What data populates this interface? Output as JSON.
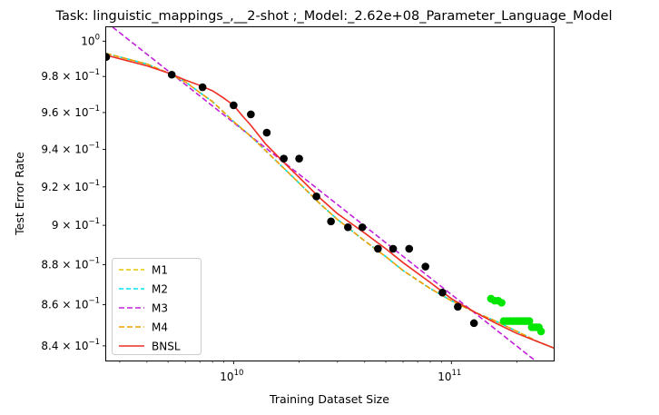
{
  "chart_data": {
    "type": "scatter",
    "title": "Task: linguistic_mappings_,__2-shot ;_Model:_2.62e+08_Parameter_Language_Model",
    "xlabel": "Training Dataset Size",
    "ylabel": "Test Error Rate",
    "xscale": "log",
    "yscale": "log",
    "xlim": [
      2600000000.0,
      295000000000.0
    ],
    "ylim": [
      0.833,
      1.008
    ],
    "grid": false,
    "legend_position": "lower-left",
    "xticks": [
      {
        "value": 10000000000.0,
        "base": "10",
        "exp": "10"
      },
      {
        "value": 100000000000.0,
        "base": "10",
        "exp": "11"
      }
    ],
    "yticks": [
      {
        "value": 1.0,
        "base": "10",
        "exp": "0"
      },
      {
        "value": 0.98,
        "mant": "9.8",
        "base": "10",
        "exp": "−1"
      },
      {
        "value": 0.96,
        "mant": "9.6",
        "base": "10",
        "exp": "−1"
      },
      {
        "value": 0.94,
        "mant": "9.4",
        "base": "10",
        "exp": "−1"
      },
      {
        "value": 0.92,
        "mant": "9.2",
        "base": "10",
        "exp": "−1"
      },
      {
        "value": 0.9,
        "mant": "9",
        "base": "10",
        "exp": "−1"
      },
      {
        "value": 0.88,
        "mant": "8.8",
        "base": "10",
        "exp": "−1"
      },
      {
        "value": 0.86,
        "mant": "8.6",
        "base": "10",
        "exp": "−1"
      },
      {
        "value": 0.84,
        "mant": "8.4",
        "base": "10",
        "exp": "−1"
      }
    ],
    "train_points": {
      "color": "#000000",
      "x": [
        2600000000.0,
        5200000000.0,
        7200000000.0,
        10000000000.0,
        12000000000.0,
        14200000000.0,
        17000000000.0,
        20000000000.0,
        24000000000.0,
        28000000000.0,
        33500000000.0,
        39000000000.0,
        46000000000.0,
        54000000000.0,
        64000000000.0,
        76000000000.0,
        91000000000.0,
        107000000000.0,
        127000000000.0
      ],
      "y": [
        0.991,
        0.981,
        0.974,
        0.964,
        0.959,
        0.949,
        0.935,
        0.935,
        0.915,
        0.902,
        0.899,
        0.899,
        0.888,
        0.888,
        0.888,
        0.879,
        0.866,
        0.859,
        0.851
      ]
    },
    "test_points": {
      "color": "#00e600",
      "x": [
        152000000000.0,
        158000000000.0,
        164000000000.0,
        170000000000.0,
        174000000000.0,
        180000000000.0,
        186000000000.0,
        192000000000.0,
        198000000000.0,
        204000000000.0,
        210000000000.0,
        216000000000.0,
        222000000000.0,
        228000000000.0,
        234000000000.0,
        240000000000.0,
        246000000000.0,
        252000000000.0,
        258000000000.0
      ],
      "y": [
        0.863,
        0.862,
        0.862,
        0.861,
        0.852,
        0.852,
        0.852,
        0.852,
        0.852,
        0.852,
        0.852,
        0.852,
        0.852,
        0.852,
        0.849,
        0.849,
        0.849,
        0.849,
        0.847
      ]
    },
    "series": [
      {
        "name": "M1",
        "color": "#e6c800",
        "dash": "5,3",
        "x": [
          2600000000.0,
          3000000000.0,
          4000000000.0,
          5000000000.0,
          6000000000.0,
          7000000000.0,
          8000000000.0,
          10000000000.0,
          12000000000.0,
          15000000000.0,
          20000000000.0,
          25000000000.0,
          30000000000.0,
          40000000000.0,
          50000000000.0,
          60000000000.0,
          80000000000.0,
          100000000000.0,
          130000000000.0,
          160000000000.0,
          200000000000.0,
          250000000000.0,
          295000000000.0
        ],
        "y": [
          0.993,
          0.991,
          0.987,
          0.982,
          0.977,
          0.971,
          0.966,
          0.955,
          0.947,
          0.936,
          0.922,
          0.911,
          0.903,
          0.892,
          0.884,
          0.877,
          0.868,
          0.862,
          0.856,
          0.852,
          0.847,
          0.842,
          0.839
        ]
      },
      {
        "name": "M2",
        "color": "#00e5ee",
        "dash": "5,3",
        "x": [
          2600000000.0,
          3000000000.0,
          4000000000.0,
          5000000000.0,
          6000000000.0,
          7000000000.0,
          8000000000.0,
          10000000000.0,
          12000000000.0,
          15000000000.0,
          20000000000.0,
          25000000000.0,
          30000000000.0,
          40000000000.0,
          50000000000.0,
          60000000000.0,
          80000000000.0,
          100000000000.0,
          130000000000.0,
          160000000000.0,
          200000000000.0,
          250000000000.0,
          295000000000.0
        ],
        "y": [
          0.993,
          0.991,
          0.987,
          0.982,
          0.977,
          0.971,
          0.966,
          0.955,
          0.947,
          0.936,
          0.922,
          0.911,
          0.903,
          0.892,
          0.884,
          0.877,
          0.868,
          0.862,
          0.856,
          0.852,
          0.847,
          0.842,
          0.839
        ]
      },
      {
        "name": "M3",
        "color": "#c020d8",
        "dash": "6,3",
        "x": [
          2600000000.0,
          295000000000.0
        ],
        "y": [
          1.011,
          0.826
        ]
      },
      {
        "name": "M4",
        "color": "#f0a000",
        "dash": "6,3",
        "x": [
          2600000000.0,
          3000000000.0,
          4000000000.0,
          5000000000.0,
          6000000000.0,
          7000000000.0,
          8000000000.0,
          10000000000.0,
          12000000000.0,
          15000000000.0,
          20000000000.0,
          25000000000.0,
          30000000000.0,
          40000000000.0,
          50000000000.0,
          60000000000.0,
          80000000000.0,
          100000000000.0,
          130000000000.0,
          160000000000.0,
          200000000000.0,
          250000000000.0,
          295000000000.0
        ],
        "y": [
          0.993,
          0.991,
          0.987,
          0.982,
          0.977,
          0.971,
          0.966,
          0.955,
          0.947,
          0.936,
          0.922,
          0.911,
          0.903,
          0.892,
          0.884,
          0.877,
          0.868,
          0.862,
          0.856,
          0.852,
          0.847,
          0.842,
          0.839
        ]
      },
      {
        "name": "BNSL",
        "color": "#ee2d24",
        "dash": "",
        "x": [
          2600000000.0,
          3000000000.0,
          4000000000.0,
          5000000000.0,
          6000000000.0,
          7000000000.0,
          8000000000.0,
          9000000000.0,
          10000000000.0,
          11000000000.0,
          12000000000.0,
          14000000000.0,
          17000000000.0,
          20000000000.0,
          25000000000.0,
          30000000000.0,
          40000000000.0,
          50000000000.0,
          60000000000.0,
          80000000000.0,
          100000000000.0,
          130000000000.0,
          160000000000.0,
          200000000000.0,
          250000000000.0,
          295000000000.0
        ],
        "y": [
          0.992,
          0.99,
          0.986,
          0.982,
          0.978,
          0.975,
          0.972,
          0.968,
          0.964,
          0.958,
          0.953,
          0.943,
          0.933,
          0.925,
          0.914,
          0.906,
          0.896,
          0.888,
          0.881,
          0.871,
          0.863,
          0.856,
          0.851,
          0.846,
          0.842,
          0.839
        ]
      }
    ]
  }
}
